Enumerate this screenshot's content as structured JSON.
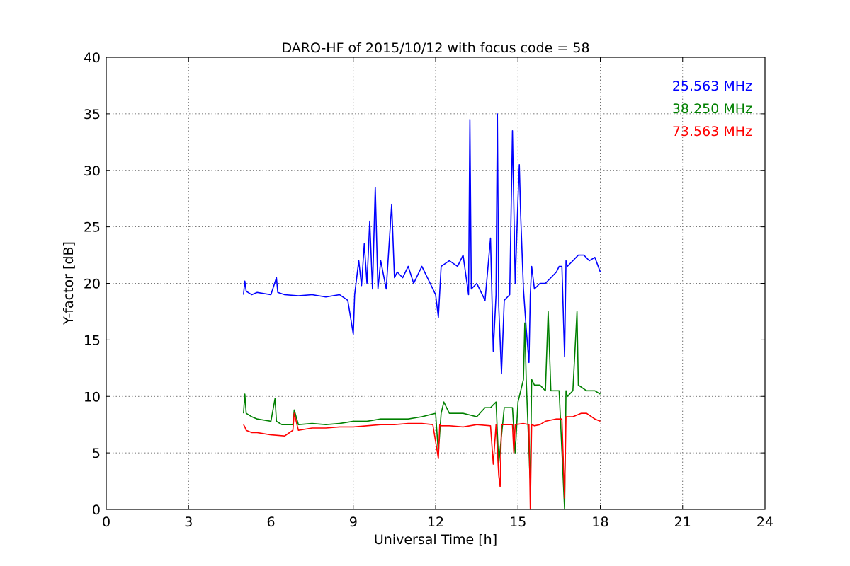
{
  "chart_data": {
    "type": "line",
    "title": "DARO-HF of 2015/10/12 with focus code = 58",
    "xlabel": "Universal Time [h]",
    "ylabel": "Y-factor [dB]",
    "xlim": [
      0,
      24
    ],
    "ylim": [
      0,
      40
    ],
    "xticks": [
      0,
      3,
      6,
      9,
      12,
      15,
      18,
      21,
      24
    ],
    "yticks": [
      0,
      5,
      10,
      15,
      20,
      25,
      30,
      35,
      40
    ],
    "grid": true,
    "legend_position": "top-right",
    "series": [
      {
        "name": "25.563 MHz",
        "color": "#0000ff",
        "x": [
          5.0,
          5.05,
          5.1,
          5.3,
          5.5,
          6.0,
          6.2,
          6.25,
          6.5,
          7.0,
          7.5,
          8.0,
          8.5,
          8.8,
          8.9,
          9.0,
          9.05,
          9.2,
          9.3,
          9.4,
          9.5,
          9.6,
          9.7,
          9.8,
          9.9,
          10.0,
          10.2,
          10.4,
          10.5,
          10.6,
          10.8,
          11.0,
          11.2,
          11.5,
          11.8,
          12.0,
          12.1,
          12.2,
          12.5,
          12.8,
          13.0,
          13.2,
          13.25,
          13.3,
          13.5,
          13.8,
          14.0,
          14.1,
          14.2,
          14.25,
          14.3,
          14.4,
          14.5,
          14.7,
          14.8,
          14.9,
          15.0,
          15.05,
          15.1,
          15.2,
          15.3,
          15.4,
          15.45,
          15.5,
          15.6,
          15.8,
          16.0,
          16.2,
          16.4,
          16.5,
          16.6,
          16.7,
          16.75,
          16.8,
          17.0,
          17.2,
          17.4,
          17.6,
          17.8,
          18.0
        ],
        "y": [
          19.0,
          20.2,
          19.3,
          19.0,
          19.2,
          19.0,
          20.5,
          19.2,
          19.0,
          18.9,
          19.0,
          18.8,
          19.0,
          18.5,
          17.0,
          15.5,
          19.0,
          22.0,
          19.8,
          23.5,
          20.0,
          25.5,
          19.5,
          28.5,
          19.5,
          22.0,
          19.5,
          27.0,
          20.5,
          21.0,
          20.5,
          21.5,
          20.0,
          21.5,
          20.0,
          19.0,
          17.0,
          21.5,
          22.0,
          21.5,
          22.5,
          19.0,
          34.5,
          19.5,
          20.0,
          18.5,
          24.0,
          14.0,
          19.0,
          35.0,
          18.0,
          12.0,
          18.5,
          19.0,
          33.5,
          20.0,
          27.5,
          30.5,
          26.0,
          19.5,
          16.0,
          13.0,
          19.0,
          21.5,
          19.5,
          20.0,
          20.0,
          20.5,
          21.0,
          21.5,
          21.5,
          13.5,
          22.0,
          21.5,
          22.0,
          22.5,
          22.5,
          22.0,
          22.3,
          21.0
        ]
      },
      {
        "name": "38.250 MHz",
        "color": "#008000",
        "x": [
          5.0,
          5.05,
          5.1,
          5.3,
          5.5,
          6.0,
          6.15,
          6.2,
          6.4,
          6.8,
          6.85,
          7.0,
          7.5,
          8.0,
          8.5,
          9.0,
          9.5,
          10.0,
          10.5,
          11.0,
          11.5,
          12.0,
          12.1,
          12.2,
          12.3,
          12.5,
          13.0,
          13.5,
          13.8,
          14.0,
          14.2,
          14.3,
          14.5,
          14.8,
          14.9,
          15.0,
          15.2,
          15.25,
          15.3,
          15.45,
          15.5,
          15.6,
          15.8,
          16.0,
          16.1,
          16.2,
          16.5,
          16.7,
          16.75,
          16.8,
          17.0,
          17.15,
          17.2,
          17.5,
          17.8,
          18.0
        ],
        "y": [
          8.5,
          10.2,
          8.5,
          8.2,
          8.0,
          7.8,
          9.8,
          7.8,
          7.5,
          7.5,
          8.8,
          7.5,
          7.6,
          7.5,
          7.6,
          7.8,
          7.8,
          8.0,
          8.0,
          8.0,
          8.2,
          8.5,
          5.0,
          8.5,
          9.5,
          8.5,
          8.5,
          8.2,
          9.0,
          9.0,
          9.5,
          4.0,
          9.0,
          9.0,
          5.0,
          9.5,
          11.5,
          16.5,
          11.5,
          2.0,
          11.5,
          11.0,
          11.0,
          10.5,
          17.5,
          10.5,
          10.5,
          0.0,
          10.5,
          10.0,
          10.5,
          17.5,
          11.0,
          10.5,
          10.5,
          10.2
        ]
      },
      {
        "name": "73.563 MHz",
        "color": "#ff0000",
        "x": [
          5.0,
          5.05,
          5.1,
          5.3,
          5.5,
          6.0,
          6.5,
          6.8,
          6.85,
          7.0,
          7.5,
          8.0,
          8.5,
          9.0,
          9.5,
          10.0,
          10.5,
          11.0,
          11.5,
          11.9,
          12.0,
          12.1,
          12.15,
          12.2,
          12.5,
          13.0,
          13.5,
          14.0,
          14.1,
          14.2,
          14.3,
          14.35,
          14.4,
          14.6,
          14.8,
          14.85,
          14.9,
          15.2,
          15.4,
          15.45,
          15.5,
          15.6,
          15.8,
          16.0,
          16.4,
          16.6,
          16.7,
          16.75,
          16.8,
          17.0,
          17.3,
          17.5,
          17.8,
          18.0
        ],
        "y": [
          7.5,
          7.3,
          7.0,
          6.8,
          6.8,
          6.6,
          6.5,
          7.0,
          8.5,
          7.0,
          7.2,
          7.2,
          7.3,
          7.3,
          7.4,
          7.5,
          7.5,
          7.6,
          7.6,
          7.5,
          6.0,
          4.5,
          7.5,
          7.4,
          7.4,
          7.3,
          7.5,
          7.4,
          4.0,
          7.5,
          3.0,
          2.0,
          7.5,
          7.5,
          7.5,
          5.0,
          7.5,
          7.6,
          7.5,
          0.0,
          7.5,
          7.4,
          7.5,
          7.8,
          8.0,
          8.0,
          1.0,
          8.2,
          8.2,
          8.2,
          8.5,
          8.5,
          8.0,
          7.8
        ]
      }
    ]
  }
}
